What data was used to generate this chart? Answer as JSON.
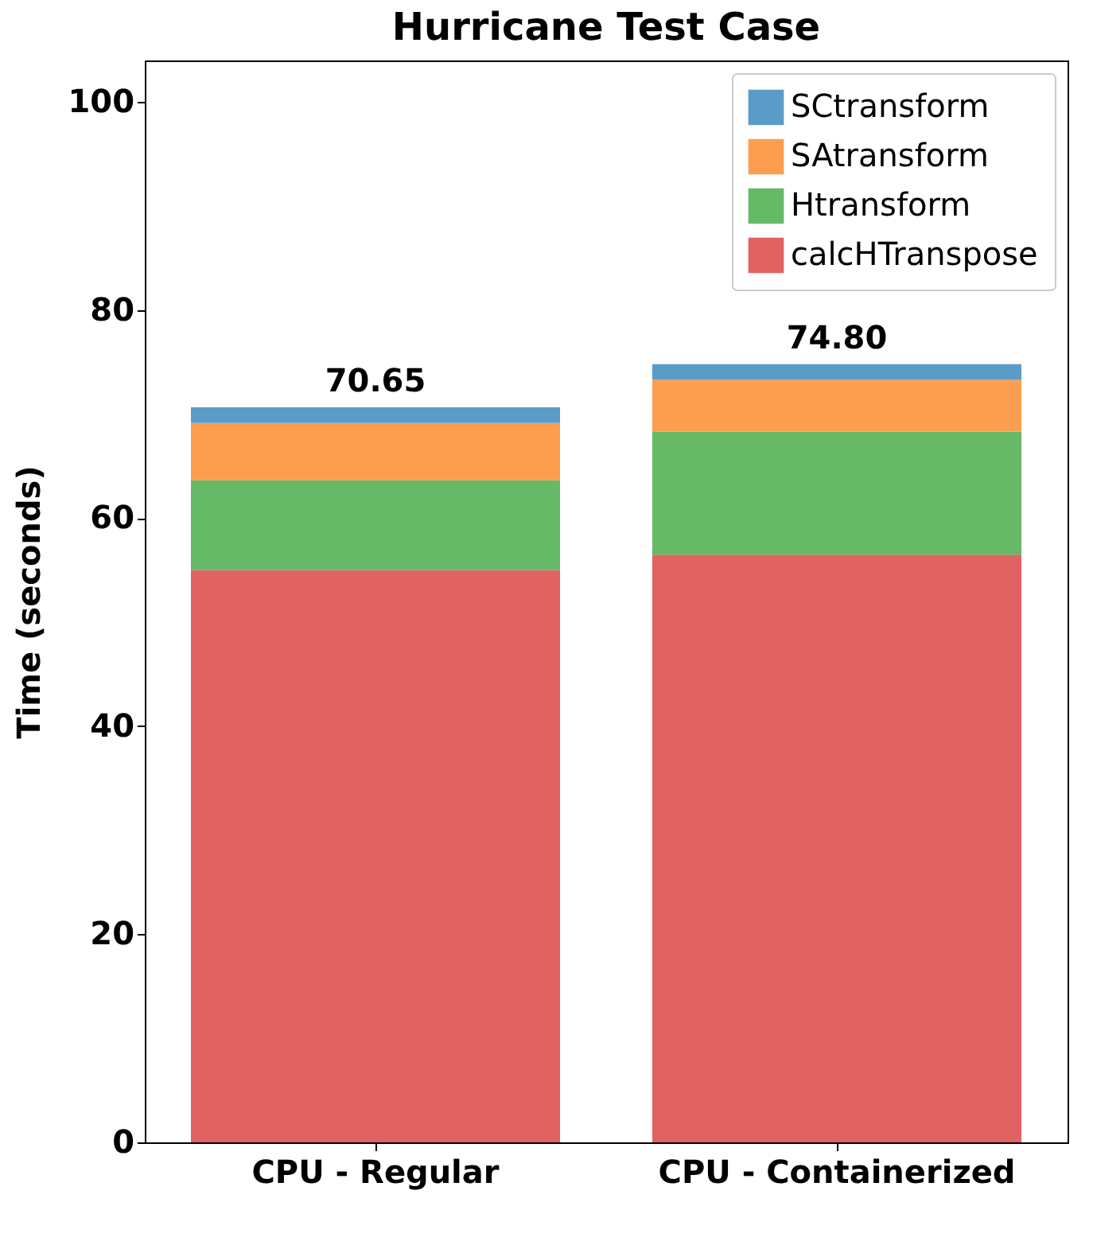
{
  "chart_data": {
    "type": "bar",
    "title": "Hurricane Test Case",
    "ylabel": "Time (seconds)",
    "categories": [
      "CPU - Regular",
      "CPU - Containerized"
    ],
    "series": [
      {
        "name": "calcHTranspose",
        "color": "#e06263",
        "values": [
          55.0,
          56.5
        ]
      },
      {
        "name": "Htransform",
        "color": "#66b966",
        "values": [
          8.65,
          11.8
        ]
      },
      {
        "name": "SAtransform",
        "color": "#fb9e4f",
        "values": [
          5.5,
          5.0
        ]
      },
      {
        "name": "SCtransform",
        "color": "#5b9bc8",
        "values": [
          1.5,
          1.5
        ]
      }
    ],
    "stacked": true,
    "totals": [
      "70.65",
      "74.80"
    ],
    "ylim": [
      0,
      104
    ],
    "yticks": [
      0,
      20,
      40,
      60,
      80,
      100
    ],
    "grid": false,
    "legend": "top right"
  }
}
